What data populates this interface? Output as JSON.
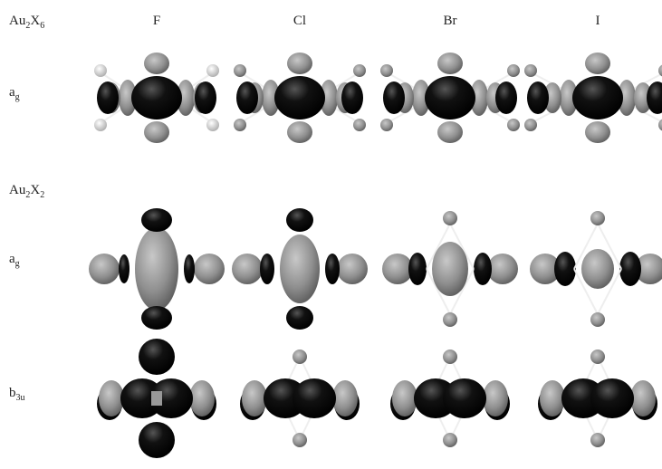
{
  "columns": [
    "F",
    "Cl",
    "Br",
    "I"
  ],
  "sections": [
    {
      "label": [
        "Au",
        "2",
        "X",
        "6"
      ],
      "rows": [
        {
          "label": [
            "a",
            "g"
          ]
        }
      ]
    },
    {
      "label": [
        "Au",
        "2",
        "X",
        "2"
      ],
      "rows": [
        {
          "label": [
            "a",
            "g"
          ]
        },
        {
          "label": [
            "b",
            "3u"
          ]
        }
      ]
    }
  ]
}
